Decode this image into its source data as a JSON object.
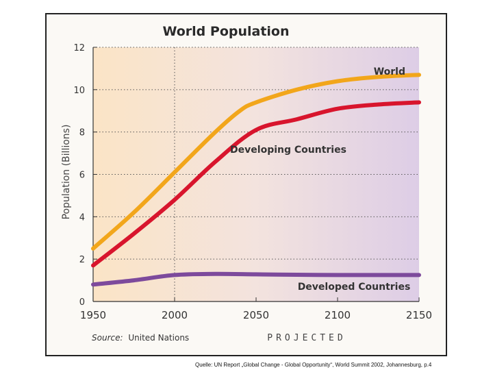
{
  "chart_data": {
    "type": "line",
    "title": "World Population",
    "ylabel": "Population (Billions)",
    "xlabel": "",
    "x_ticks": [
      "1950",
      "2000",
      "2050",
      "2100",
      "2150"
    ],
    "y_ticks": [
      "0",
      "2",
      "4",
      "6",
      "8",
      "10",
      "12"
    ],
    "xlim": [
      1950,
      2150
    ],
    "ylim": [
      0,
      12
    ],
    "projected_from": 2000,
    "projected_label": "PROJECTED",
    "source_prefix": "Source:",
    "source_name": "United Nations",
    "series": [
      {
        "name": "World",
        "color": "#f2a61b",
        "x": [
          1950,
          1975,
          2000,
          2025,
          2040,
          2050,
          2075,
          2100,
          2125,
          2150
        ],
        "values": [
          2.5,
          4.2,
          6.1,
          8.0,
          9.0,
          9.4,
          10.0,
          10.4,
          10.6,
          10.7
        ]
      },
      {
        "name": "Developing Countries",
        "color": "#d8152d",
        "x": [
          1950,
          1975,
          2000,
          2025,
          2050,
          2075,
          2100,
          2125,
          2150
        ],
        "values": [
          1.7,
          3.2,
          4.8,
          6.6,
          8.1,
          8.6,
          9.1,
          9.3,
          9.4
        ]
      },
      {
        "name": "Developed Countries",
        "color": "#7d4a9c",
        "x": [
          1950,
          1975,
          2000,
          2025,
          2050,
          2075,
          2100,
          2125,
          2150
        ],
        "values": [
          0.8,
          1.0,
          1.25,
          1.3,
          1.28,
          1.26,
          1.25,
          1.25,
          1.25
        ]
      }
    ]
  },
  "caption": "Quelle: UN Report „Global Change - Global Opportunity“, World Summit 2002, Johannesburg,  p.4"
}
